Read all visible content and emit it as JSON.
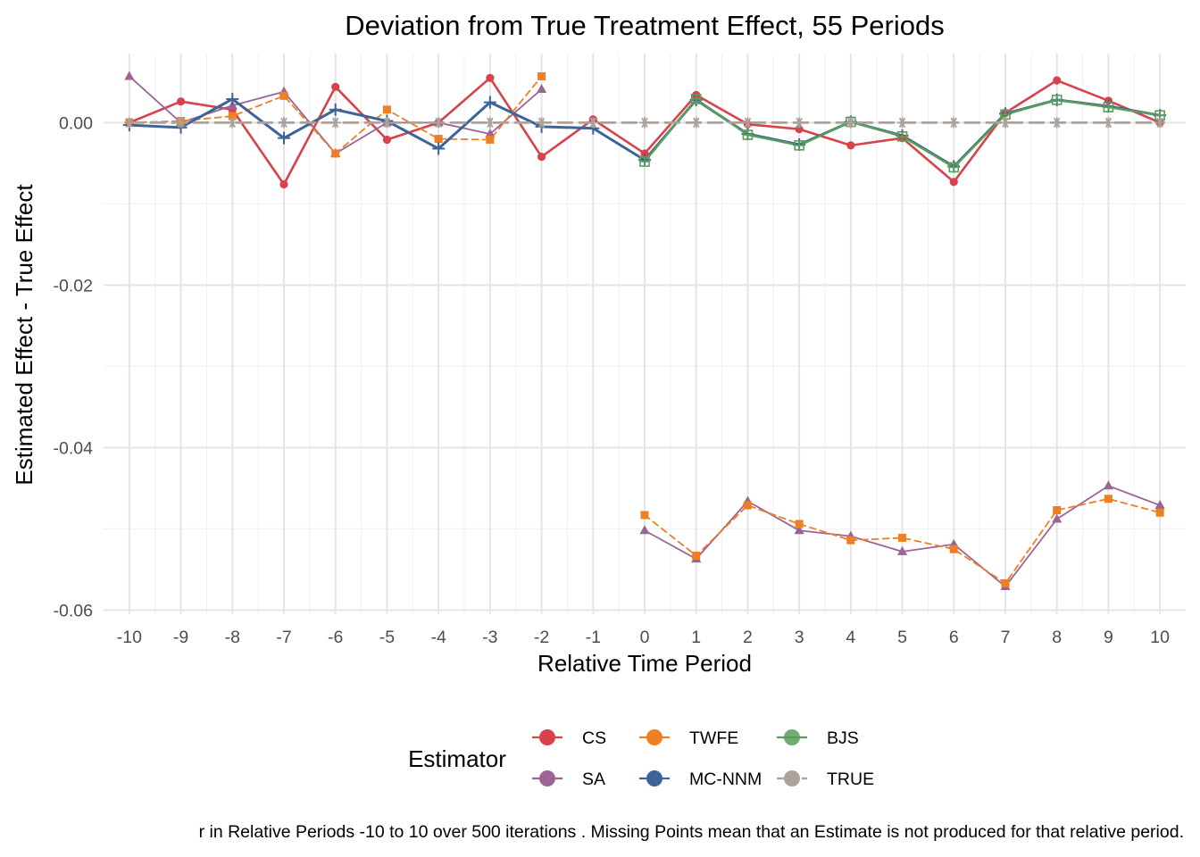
{
  "chart_data": {
    "type": "line",
    "title": "Deviation from True Treatment Effect, 55 Periods",
    "xlabel": "Relative Time Period",
    "ylabel": "Estimated Effect - True Effect",
    "x": [
      -10,
      -9,
      -8,
      -7,
      -6,
      -5,
      -4,
      -3,
      -2,
      -1,
      0,
      1,
      2,
      3,
      4,
      5,
      6,
      7,
      8,
      9,
      10
    ],
    "x_tick_labels": [
      "-10",
      "-9",
      "-8",
      "-7",
      "-6",
      "-5",
      "-4",
      "-3",
      "-2",
      "-1",
      "0",
      "1",
      "2",
      "3",
      "4",
      "5",
      "6",
      "7",
      "8",
      "9",
      "10"
    ],
    "ylim": [
      -0.0605,
      0.0085
    ],
    "y_ticks": [
      0.0,
      -0.02,
      -0.04,
      -0.06
    ],
    "y_tick_labels": [
      "0.00",
      "-0.02",
      "-0.04",
      "-0.06"
    ],
    "grid": true,
    "legend": {
      "title": "Estimator",
      "placement": "bottom",
      "entries": [
        "CS",
        "TWFE",
        "BJS",
        "SA",
        "MC-NNM",
        "TRUE"
      ]
    },
    "caption": "r in Relative Periods -10 to 10 over 500 iterations . Missing Points mean that an Estimate is not produced for that relative period.",
    "series": [
      {
        "name": "CS",
        "color": "#d7424b",
        "marker": "circle",
        "dash": "solid",
        "width": 2.6,
        "segments": [
          [
            [
              -10,
              0.0
            ],
            [
              -9,
              0.0026
            ],
            [
              -8,
              0.0016
            ],
            [
              -7,
              -0.0076
            ],
            [
              -6,
              0.0044
            ],
            [
              -5,
              -0.0021
            ],
            [
              -4,
              0.0
            ],
            [
              -3,
              0.0055
            ],
            [
              -2,
              -0.0042
            ],
            [
              -1,
              0.0004
            ],
            [
              0,
              -0.0038
            ],
            [
              1,
              0.0034
            ],
            [
              2,
              -0.0002
            ],
            [
              3,
              -0.0008
            ],
            [
              4,
              -0.0028
            ],
            [
              5,
              -0.0019
            ],
            [
              6,
              -0.0073
            ],
            [
              7,
              0.0012
            ],
            [
              8,
              0.0052
            ],
            [
              9,
              0.0027
            ],
            [
              10,
              0.0
            ]
          ]
        ]
      },
      {
        "name": "SA",
        "color": "#9c6496",
        "marker": "triangle",
        "dash": "solid",
        "width": 1.8,
        "segments": [
          [
            [
              -10,
              0.0057
            ],
            [
              -9,
              0.0
            ],
            [
              -8,
              0.0021
            ],
            [
              -7,
              0.0038
            ],
            [
              -6,
              -0.0038
            ],
            [
              -5,
              0.0
            ],
            [
              -4,
              0.0
            ],
            [
              -3,
              -0.0014
            ],
            [
              -2,
              0.0041
            ]
          ],
          [
            [
              0,
              -0.0502
            ],
            [
              1,
              -0.0537
            ],
            [
              2,
              -0.0466
            ],
            [
              3,
              -0.0502
            ],
            [
              4,
              -0.0509
            ],
            [
              5,
              -0.0528
            ],
            [
              6,
              -0.0519
            ],
            [
              7,
              -0.0571
            ],
            [
              8,
              -0.0488
            ],
            [
              9,
              -0.0447
            ],
            [
              10,
              -0.0471
            ]
          ]
        ]
      },
      {
        "name": "TWFE",
        "color": "#ef7f23",
        "marker": "square",
        "dash": "dashed",
        "width": 1.8,
        "segments": [
          [
            [
              -10,
              0.0
            ],
            [
              -9,
              0.0002
            ],
            [
              -8,
              0.0008
            ],
            [
              -7,
              0.0033
            ],
            [
              -6,
              -0.0038
            ],
            [
              -5,
              0.0016
            ],
            [
              -4,
              -0.002
            ],
            [
              -3,
              -0.0021
            ],
            [
              -2,
              0.0057
            ]
          ],
          [
            [
              0,
              -0.0483
            ],
            [
              1,
              -0.0533
            ],
            [
              2,
              -0.0471
            ],
            [
              3,
              -0.0494
            ],
            [
              4,
              -0.0514
            ],
            [
              5,
              -0.0511
            ],
            [
              6,
              -0.0525
            ],
            [
              7,
              -0.0567
            ],
            [
              8,
              -0.0477
            ],
            [
              9,
              -0.0463
            ],
            [
              10,
              -0.048
            ]
          ]
        ]
      },
      {
        "name": "MC-NNM",
        "color": "#3c6498",
        "marker": "plus",
        "dash": "solid",
        "width": 3,
        "segments": [
          [
            [
              -10,
              -0.0003
            ],
            [
              -9,
              -0.0006
            ],
            [
              -8,
              0.0029
            ],
            [
              -7,
              -0.0019
            ],
            [
              -6,
              0.0016
            ],
            [
              -5,
              0.0002
            ],
            [
              -4,
              -0.0032
            ],
            [
              -3,
              0.0025
            ],
            [
              -2,
              -0.0005
            ],
            [
              -1,
              -0.0007
            ],
            [
              0,
              -0.0046
            ],
            [
              1,
              0.0028
            ],
            [
              2,
              -0.0014
            ],
            [
              3,
              -0.0027
            ],
            [
              4,
              0.0001
            ],
            [
              5,
              -0.0016
            ],
            [
              6,
              -0.0054
            ],
            [
              7,
              0.0011
            ],
            [
              8,
              0.0028
            ],
            [
              9,
              0.002
            ],
            [
              10,
              0.0009
            ]
          ]
        ]
      },
      {
        "name": "BJS",
        "color": "#5a9e58",
        "marker": "squareplus",
        "dash": "solid",
        "width": 2.4,
        "segments": [
          [
            [
              0,
              -0.0048
            ],
            [
              1,
              0.0029
            ],
            [
              2,
              -0.0015
            ],
            [
              3,
              -0.0028
            ],
            [
              4,
              0.0001
            ],
            [
              5,
              -0.0017
            ],
            [
              6,
              -0.0055
            ],
            [
              7,
              0.001
            ],
            [
              8,
              0.0028
            ],
            [
              9,
              0.0019
            ],
            [
              10,
              0.0009
            ]
          ]
        ]
      },
      {
        "name": "TRUE",
        "color": "#aaa29b",
        "marker": "asterisk",
        "dash": "longdash",
        "width": 2.8,
        "segments": [
          [
            [
              -10,
              0.0
            ],
            [
              -9,
              0.0
            ],
            [
              -8,
              0.0
            ],
            [
              -7,
              0.0
            ],
            [
              -6,
              0.0
            ],
            [
              -5,
              0.0
            ],
            [
              -4,
              0.0
            ],
            [
              -3,
              0.0
            ],
            [
              -2,
              0.0
            ],
            [
              -1,
              0.0
            ],
            [
              0,
              0.0
            ],
            [
              1,
              0.0
            ],
            [
              2,
              0.0
            ],
            [
              3,
              0.0
            ],
            [
              4,
              0.0
            ],
            [
              5,
              0.0
            ],
            [
              6,
              0.0
            ],
            [
              7,
              0.0
            ],
            [
              8,
              0.0
            ],
            [
              9,
              0.0
            ],
            [
              10,
              0.0
            ]
          ]
        ]
      }
    ]
  }
}
